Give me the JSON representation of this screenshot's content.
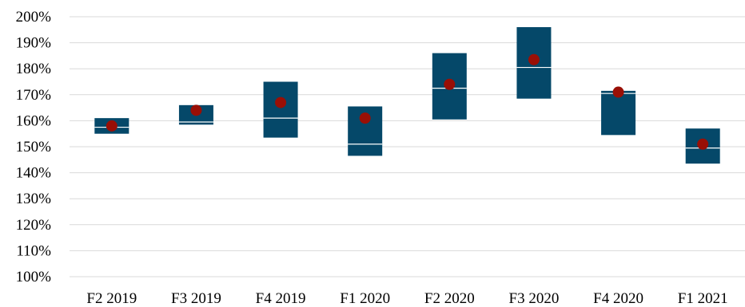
{
  "chart_data": {
    "type": "box",
    "title": "",
    "xlabel": "",
    "ylabel": "",
    "ylim": [
      100,
      200
    ],
    "y_ticks": [
      "100%",
      "110%",
      "120%",
      "130%",
      "140%",
      "150%",
      "160%",
      "170%",
      "180%",
      "190%",
      "200%"
    ],
    "grid": true,
    "legend": "none",
    "categories": [
      "F2 2019",
      "F3 2019",
      "F4 2019",
      "F1 2020",
      "F2 2020",
      "F3 2020",
      "F4 2020",
      "F1 2021"
    ],
    "series": [
      {
        "stat": "low",
        "values": [
          155,
          158.5,
          153.5,
          146.5,
          160.5,
          168.5,
          154.5,
          143.5
        ]
      },
      {
        "stat": "high",
        "values": [
          161,
          166,
          175,
          165.5,
          186,
          196,
          171.5,
          157
        ]
      },
      {
        "stat": "median",
        "values": [
          157.5,
          159.5,
          161,
          151,
          172.5,
          180.5,
          170.5,
          149.5
        ]
      },
      {
        "stat": "mean",
        "values": [
          158,
          164,
          167,
          161,
          174,
          183.5,
          171,
          151
        ]
      }
    ],
    "colors": {
      "box": "#054869",
      "median_line": "#ffffff",
      "mean_marker": "#990f06",
      "grid": "#d9d9d9"
    }
  }
}
